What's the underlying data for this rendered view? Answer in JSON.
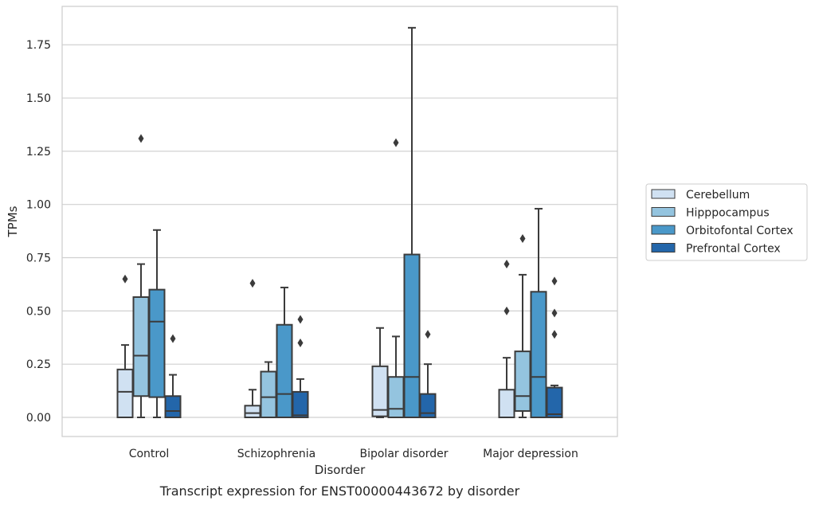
{
  "caption": "Transcript expression for ENST00000443672 by disorder",
  "chart_data": {
    "type": "box",
    "xlabel": "Disorder",
    "ylabel": "TPMs",
    "ylim": [
      -0.09,
      1.92
    ],
    "yticks": [
      "0.00",
      "0.25",
      "0.50",
      "0.75",
      "1.00",
      "1.25",
      "1.50",
      "1.75"
    ],
    "grid": true,
    "legend_position": "right",
    "categories": [
      "Control",
      "Schizophrenia",
      "Bipolar disorder",
      "Major depression"
    ],
    "series": [
      {
        "name": "Cerebellum",
        "color": "#d0e1f2",
        "boxes": [
          {
            "whisker_low": 0.0,
            "q1": 0.0,
            "median": 0.12,
            "q3": 0.225,
            "whisker_high": 0.34,
            "outliers": [
              0.65
            ]
          },
          {
            "whisker_low": 0.0,
            "q1": 0.0,
            "median": 0.02,
            "q3": 0.055,
            "whisker_high": 0.13,
            "outliers": [
              0.63
            ]
          },
          {
            "whisker_low": 0.0,
            "q1": 0.005,
            "median": 0.035,
            "q3": 0.24,
            "whisker_high": 0.42,
            "outliers": []
          },
          {
            "whisker_low": 0.0,
            "q1": 0.0,
            "median": 0.0,
            "q3": 0.13,
            "whisker_high": 0.28,
            "outliers": [
              0.5,
              0.72
            ]
          }
        ]
      },
      {
        "name": "Hipppocampus",
        "color": "#94c4df",
        "boxes": [
          {
            "whisker_low": 0.0,
            "q1": 0.1,
            "median": 0.29,
            "q3": 0.565,
            "whisker_high": 0.72,
            "outliers": [
              1.31
            ]
          },
          {
            "whisker_low": 0.0,
            "q1": 0.0,
            "median": 0.095,
            "q3": 0.215,
            "whisker_high": 0.26,
            "outliers": []
          },
          {
            "whisker_low": 0.0,
            "q1": 0.0,
            "median": 0.04,
            "q3": 0.19,
            "whisker_high": 0.38,
            "outliers": [
              1.29
            ]
          },
          {
            "whisker_low": 0.0,
            "q1": 0.03,
            "median": 0.1,
            "q3": 0.31,
            "whisker_high": 0.67,
            "outliers": [
              0.84
            ]
          }
        ]
      },
      {
        "name": "Orbitofontal Cortex",
        "color": "#4a98c9",
        "boxes": [
          {
            "whisker_low": 0.0,
            "q1": 0.095,
            "median": 0.45,
            "q3": 0.6,
            "whisker_high": 0.88,
            "outliers": []
          },
          {
            "whisker_low": 0.0,
            "q1": 0.0,
            "median": 0.11,
            "q3": 0.435,
            "whisker_high": 0.61,
            "outliers": []
          },
          {
            "whisker_low": 0.0,
            "q1": 0.0,
            "median": 0.19,
            "q3": 0.765,
            "whisker_high": 1.83,
            "outliers": []
          },
          {
            "whisker_low": 0.0,
            "q1": 0.0,
            "median": 0.19,
            "q3": 0.59,
            "whisker_high": 0.98,
            "outliers": []
          }
        ]
      },
      {
        "name": "Prefrontal Cortex",
        "color": "#2366aa",
        "boxes": [
          {
            "whisker_low": 0.0,
            "q1": 0.0,
            "median": 0.03,
            "q3": 0.1,
            "whisker_high": 0.2,
            "outliers": [
              0.37
            ]
          },
          {
            "whisker_low": 0.0,
            "q1": 0.0,
            "median": 0.01,
            "q3": 0.12,
            "whisker_high": 0.18,
            "outliers": [
              0.35,
              0.46
            ]
          },
          {
            "whisker_low": 0.0,
            "q1": 0.0,
            "median": 0.02,
            "q3": 0.11,
            "whisker_high": 0.25,
            "outliers": [
              0.39
            ]
          },
          {
            "whisker_low": 0.0,
            "q1": 0.0,
            "median": 0.015,
            "q3": 0.14,
            "whisker_high": 0.15,
            "outliers": [
              0.39,
              0.49,
              0.64
            ]
          }
        ]
      }
    ]
  }
}
